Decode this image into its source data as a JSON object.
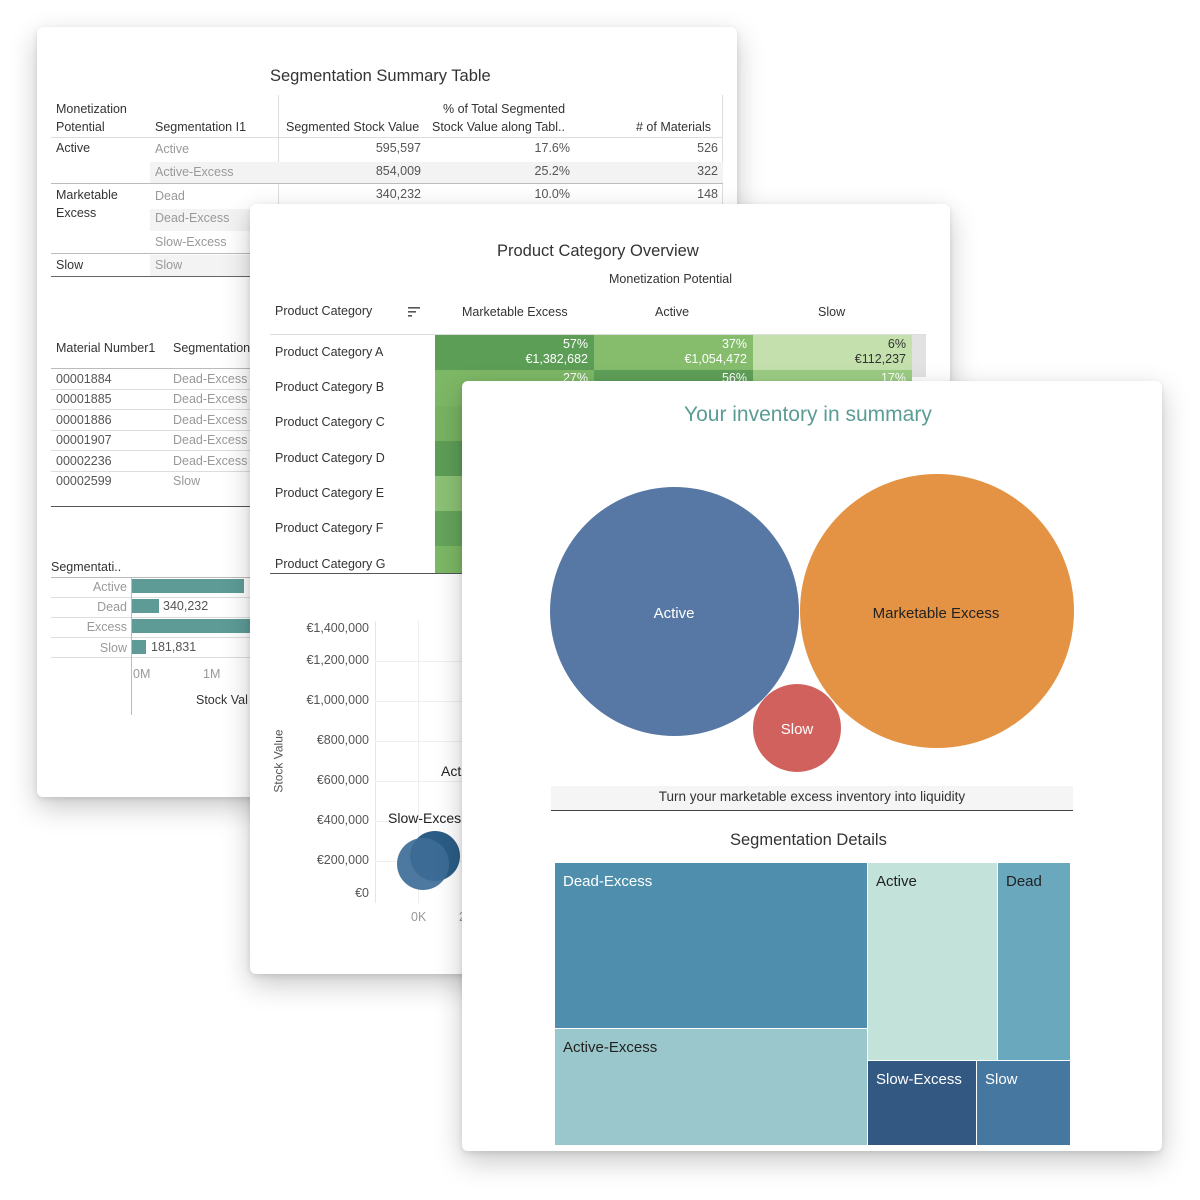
{
  "summary_table": {
    "title": "Segmentation Summary Table",
    "headers": {
      "monetization_l1": "Monetization",
      "monetization_l2": "Potential",
      "segmentation": "Segmentation I1",
      "stock_value": "Segmented Stock Value",
      "pct_l1": "% of Total Segmented",
      "pct_l2": "Stock Value along Tabl..",
      "materials": "# of Materials"
    },
    "groups": {
      "active": "Active",
      "marketable_l1": "Marketable",
      "marketable_l2": "Excess",
      "slow": "Slow"
    },
    "rows": [
      {
        "segment": "Active",
        "value": "595,597",
        "pct": "17.6%",
        "count": "526"
      },
      {
        "segment": "Active-Excess",
        "value": "854,009",
        "pct": "25.2%",
        "count": "322"
      },
      {
        "segment": "Dead",
        "value": "340,232",
        "pct": "10.0%",
        "count": "148"
      },
      {
        "segment": "Dead-Excess",
        "value": "",
        "pct": "",
        "count": ""
      },
      {
        "segment": "Slow-Excess",
        "value": "",
        "pct": "",
        "count": ""
      },
      {
        "segment": "Slow",
        "value": "",
        "pct": "",
        "count": ""
      }
    ],
    "material_headers": {
      "number": "Material Number1",
      "segmentation": "Segmentation"
    },
    "materials": [
      {
        "number": "00001884",
        "segment": "Dead-Excess"
      },
      {
        "number": "00001885",
        "segment": "Dead-Excess"
      },
      {
        "number": "00001886",
        "segment": "Dead-Excess"
      },
      {
        "number": "00001907",
        "segment": "Dead-Excess"
      },
      {
        "number": "00002236",
        "segment": "Dead-Excess"
      },
      {
        "number": "00002599",
        "segment": "Slow"
      }
    ],
    "mini_bar": {
      "title": "Segmentati..",
      "bars": [
        {
          "label": "Active",
          "value_label": ""
        },
        {
          "label": "Dead",
          "value_label": "340,232"
        },
        {
          "label": "Excess",
          "value_label": ""
        },
        {
          "label": "Slow",
          "value_label": "181,831"
        }
      ],
      "ticks": [
        "0M",
        "1M"
      ],
      "xlabel": "Stock Val"
    }
  },
  "category_overview": {
    "title": "Product Category Overview",
    "col_group_label": "Monetization Potential",
    "row_header": "Product Category",
    "columns": [
      "Marketable Excess",
      "Active",
      "Slow"
    ],
    "categories": [
      "Product Category A",
      "Product Category B",
      "Product Category C",
      "Product Category D",
      "Product Category E",
      "Product Category F",
      "Product Category G"
    ],
    "first_row": [
      {
        "pct": "57%",
        "value": "€1,382,682"
      },
      {
        "pct": "37%",
        "value": "€1,054,472"
      },
      {
        "pct": "6%",
        "value": "€112,237"
      }
    ],
    "second_row_pcts": [
      "27%",
      "56%",
      "17%"
    ],
    "scatter": {
      "ylabel": "Stock Value",
      "yticks": [
        "€1,400,000",
        "€1,200,000",
        "€1,000,000",
        "€800,000",
        "€600,000",
        "€400,000",
        "€200,000",
        "€0"
      ],
      "xtick": "0K",
      "xtick2": "2",
      "labels": {
        "slow_excess": "Slow-Exces",
        "active": "Act"
      }
    }
  },
  "summary": {
    "title": "Your inventory in summary",
    "bubbles": {
      "active": "Active",
      "marketable": "Marketable Excess",
      "slow": "Slow"
    },
    "banner": "Turn your marketable excess inventory into liquidity",
    "details_title": "Segmentation Details",
    "treemap": {
      "dead_excess": "Dead-Excess",
      "active": "Active",
      "dead": "Dead",
      "active_excess": "Active-Excess",
      "slow_excess": "Slow-Excess",
      "slow": "Slow"
    }
  },
  "colors": {
    "title_teal": "#5b9c95",
    "active_blue": "#5778a4",
    "marketable_orange": "#e49344",
    "slow_red": "#d1615d",
    "bar_teal": "#5e9b96"
  }
}
